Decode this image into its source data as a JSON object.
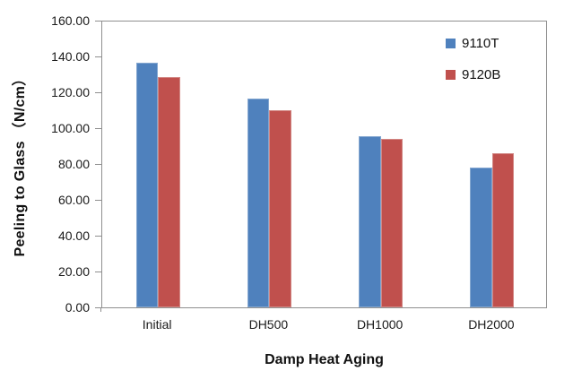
{
  "chart_data": {
    "type": "bar",
    "title": "",
    "categories": [
      "Initial",
      "DH500",
      "DH1000",
      "DH2000"
    ],
    "series": [
      {
        "name": "9110T",
        "color": "#4F81BD",
        "border_color": "#84A7D0",
        "values": [
          136.6,
          116.7,
          95.7,
          77.8
        ]
      },
      {
        "name": "9120B",
        "color": "#C0504D",
        "border_color": "#D28885",
        "values": [
          128.4,
          110.0,
          94.2,
          85.8
        ]
      }
    ],
    "xlabel": "Damp Heat Aging",
    "ylabel": "Peeling to Glass （N/cm）",
    "ylim": [
      0,
      160
    ],
    "ytick_step": 20,
    "yticks": [
      "0.00",
      "20.00",
      "40.00",
      "60.00",
      "80.00",
      "100.00",
      "120.00",
      "140.00",
      "160.00"
    ],
    "grid": false,
    "legend_position": "inside-top-right"
  },
  "colors": {
    "axis": "#8f8f8f",
    "text": "#1a1a1a",
    "background": "#ffffff"
  }
}
